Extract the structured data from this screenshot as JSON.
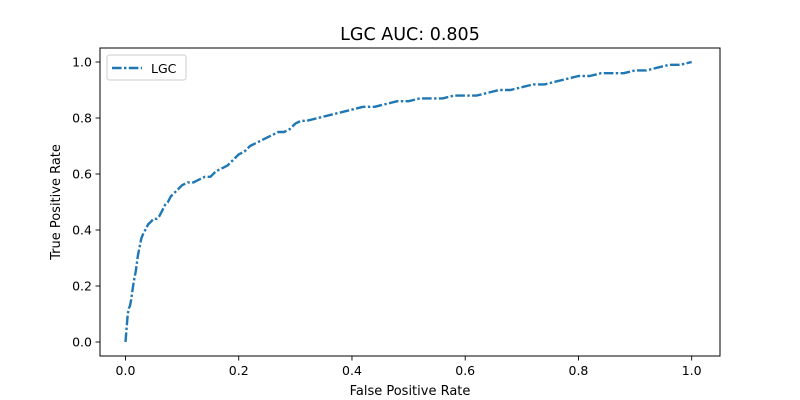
{
  "chart_data": {
    "type": "line",
    "title": "LGC AUC: 0.805",
    "xlabel": "False Positive Rate",
    "ylabel": "True Positive Rate",
    "xlim": [
      -0.045,
      1.05
    ],
    "ylim": [
      -0.05,
      1.05
    ],
    "xticks": [
      0.0,
      0.2,
      0.4,
      0.6,
      0.8,
      1.0
    ],
    "xtick_labels": [
      "0.0",
      "0.2",
      "0.4",
      "0.6",
      "0.8",
      "1.0"
    ],
    "yticks": [
      0.0,
      0.2,
      0.4,
      0.6,
      0.8,
      1.0
    ],
    "ytick_labels": [
      "0.0",
      "0.2",
      "0.4",
      "0.6",
      "0.8",
      "1.0"
    ],
    "grid": false,
    "legend": {
      "placement": "top-left",
      "entries": [
        "LGC"
      ]
    },
    "series": [
      {
        "name": "LGC",
        "color": "#1f77b4",
        "line_style": "dashdot",
        "x": [
          0.0,
          0.002,
          0.004,
          0.006,
          0.008,
          0.01,
          0.012,
          0.015,
          0.018,
          0.02,
          0.022,
          0.025,
          0.028,
          0.03,
          0.032,
          0.035,
          0.04,
          0.045,
          0.05,
          0.055,
          0.06,
          0.065,
          0.07,
          0.075,
          0.08,
          0.085,
          0.09,
          0.095,
          0.1,
          0.11,
          0.12,
          0.13,
          0.14,
          0.15,
          0.16,
          0.17,
          0.18,
          0.19,
          0.2,
          0.21,
          0.22,
          0.23,
          0.24,
          0.25,
          0.26,
          0.27,
          0.28,
          0.29,
          0.3,
          0.31,
          0.32,
          0.34,
          0.36,
          0.38,
          0.4,
          0.42,
          0.44,
          0.46,
          0.48,
          0.5,
          0.52,
          0.54,
          0.56,
          0.58,
          0.6,
          0.62,
          0.64,
          0.66,
          0.68,
          0.7,
          0.72,
          0.74,
          0.76,
          0.78,
          0.8,
          0.82,
          0.84,
          0.86,
          0.88,
          0.9,
          0.92,
          0.94,
          0.96,
          0.98,
          1.0
        ],
        "y": [
          0.0,
          0.05,
          0.1,
          0.12,
          0.13,
          0.15,
          0.18,
          0.22,
          0.25,
          0.28,
          0.31,
          0.34,
          0.37,
          0.38,
          0.39,
          0.4,
          0.42,
          0.43,
          0.44,
          0.44,
          0.45,
          0.47,
          0.49,
          0.5,
          0.52,
          0.53,
          0.54,
          0.55,
          0.56,
          0.57,
          0.57,
          0.58,
          0.59,
          0.59,
          0.61,
          0.62,
          0.63,
          0.65,
          0.67,
          0.68,
          0.7,
          0.71,
          0.72,
          0.73,
          0.74,
          0.75,
          0.75,
          0.76,
          0.78,
          0.79,
          0.79,
          0.8,
          0.81,
          0.82,
          0.83,
          0.84,
          0.84,
          0.85,
          0.86,
          0.86,
          0.87,
          0.87,
          0.87,
          0.88,
          0.88,
          0.88,
          0.89,
          0.9,
          0.9,
          0.91,
          0.92,
          0.92,
          0.93,
          0.94,
          0.95,
          0.95,
          0.96,
          0.96,
          0.96,
          0.97,
          0.97,
          0.98,
          0.99,
          0.99,
          1.0
        ]
      }
    ]
  }
}
